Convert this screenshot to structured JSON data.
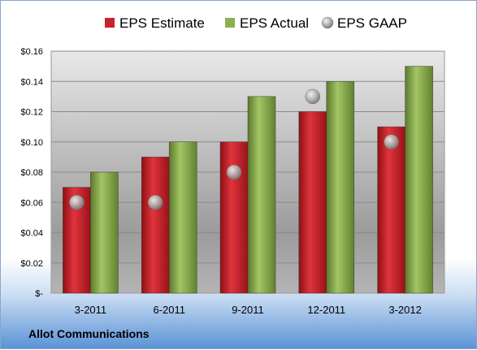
{
  "company_label": "Allot Communications",
  "chart_data": {
    "type": "bar",
    "title": "",
    "xlabel": "",
    "ylabel": "",
    "categories": [
      "3-2011",
      "6-2011",
      "9-2011",
      "12-2011",
      "3-2012"
    ],
    "series": [
      {
        "name": "EPS Estimate",
        "kind": "bar",
        "color": "#c8232c",
        "values": [
          0.07,
          0.09,
          0.1,
          0.12,
          0.11
        ]
      },
      {
        "name": "EPS Actual",
        "kind": "bar",
        "color": "#8db051",
        "values": [
          0.08,
          0.1,
          0.13,
          0.14,
          0.15
        ]
      },
      {
        "name": "EPS GAAP",
        "kind": "marker",
        "color": "#a6a6a6",
        "values": [
          0.06,
          0.06,
          0.08,
          0.13,
          0.1
        ]
      }
    ],
    "ylim": [
      0,
      0.16
    ],
    "yticks": [
      {
        "value": 0,
        "label": "$-"
      },
      {
        "value": 0.02,
        "label": "$0.02"
      },
      {
        "value": 0.04,
        "label": "$0.04"
      },
      {
        "value": 0.06,
        "label": "$0.06"
      },
      {
        "value": 0.08,
        "label": "$0.08"
      },
      {
        "value": 0.1,
        "label": "$0.10"
      },
      {
        "value": 0.12,
        "label": "$0.12"
      },
      {
        "value": 0.14,
        "label": "$0.14"
      },
      {
        "value": 0.16,
        "label": "$0.16"
      }
    ],
    "grid": true,
    "legend_position": "top"
  }
}
